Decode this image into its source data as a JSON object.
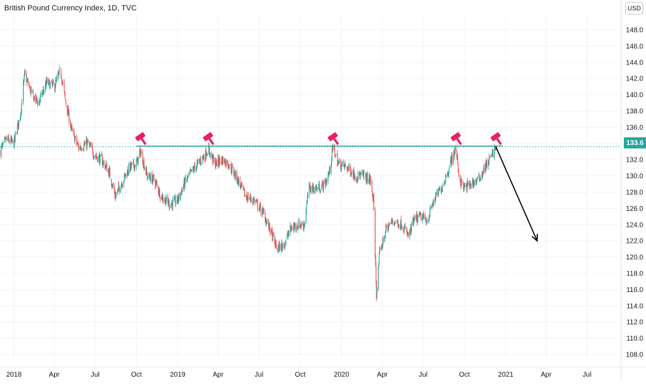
{
  "header": {
    "title": "British Pound Currency Index, 1D, TVC",
    "currency_button": "USD"
  },
  "colors": {
    "up": "#26a69a",
    "down": "#ef5350",
    "resistance_line": "#26a69a",
    "current_price_line": "#26a69a",
    "price_badge": "#26a69a",
    "marker": "#e91e63",
    "arrow": "#000000",
    "axis_text": "#131722"
  },
  "icons": [
    "hammer-icon",
    "arrow-down-right-icon"
  ],
  "chart_data": {
    "type": "candlestick",
    "title": "British Pound Currency Index, 1D, TVC",
    "x_ticks": [
      "2018",
      "Apr",
      "Jul",
      "Oct",
      "2019",
      "Apr",
      "Jul",
      "Oct",
      "2020",
      "Apr",
      "Jul",
      "Oct",
      "2021",
      "Apr",
      "Jul"
    ],
    "y_ticks": [
      "108.0",
      "110.0",
      "112.0",
      "114.0",
      "116.0",
      "118.0",
      "120.0",
      "122.0",
      "124.0",
      "126.0",
      "128.0",
      "130.0",
      "132.0",
      "134.0",
      "136.0",
      "138.0",
      "140.0",
      "142.0",
      "144.0",
      "146.0",
      "148.0"
    ],
    "ylim": [
      106.8,
      149.8
    ],
    "xlim": [
      "2017-12-01",
      "2021-09-15"
    ],
    "current_price": {
      "value": 133.6,
      "label": "133.6"
    },
    "resistance_level": 133.6,
    "price_path": [
      [
        "2017-12-01",
        133.0
      ],
      [
        "2017-12-15",
        134.5
      ],
      [
        "2018-01-01",
        134.0
      ],
      [
        "2018-01-15",
        137.5
      ],
      [
        "2018-01-25",
        142.5
      ],
      [
        "2018-02-10",
        140.0
      ],
      [
        "2018-02-25",
        139.0
      ],
      [
        "2018-03-15",
        141.5
      ],
      [
        "2018-04-01",
        141.0
      ],
      [
        "2018-04-15",
        143.0
      ],
      [
        "2018-04-25",
        139.5
      ],
      [
        "2018-05-10",
        135.5
      ],
      [
        "2018-05-25",
        133.5
      ],
      [
        "2018-06-15",
        134.0
      ],
      [
        "2018-07-01",
        132.5
      ],
      [
        "2018-07-15",
        132.0
      ],
      [
        "2018-08-01",
        130.5
      ],
      [
        "2018-08-15",
        127.5
      ],
      [
        "2018-09-01",
        129.5
      ],
      [
        "2018-09-15",
        131.0
      ],
      [
        "2018-10-01",
        131.5
      ],
      [
        "2018-10-10",
        133.0
      ],
      [
        "2018-10-25",
        130.0
      ],
      [
        "2018-11-10",
        129.5
      ],
      [
        "2018-11-25",
        127.5
      ],
      [
        "2018-12-15",
        126.5
      ],
      [
        "2019-01-01",
        127.0
      ],
      [
        "2019-01-15",
        129.0
      ],
      [
        "2019-02-01",
        130.5
      ],
      [
        "2019-02-15",
        131.5
      ],
      [
        "2019-03-01",
        132.5
      ],
      [
        "2019-03-10",
        133.3
      ],
      [
        "2019-03-25",
        131.5
      ],
      [
        "2019-04-10",
        132.0
      ],
      [
        "2019-04-25",
        131.5
      ],
      [
        "2019-05-15",
        129.5
      ],
      [
        "2019-06-01",
        127.5
      ],
      [
        "2019-06-20",
        127.0
      ],
      [
        "2019-07-10",
        125.5
      ],
      [
        "2019-07-25",
        123.5
      ],
      [
        "2019-08-10",
        121.0
      ],
      [
        "2019-08-25",
        121.5
      ],
      [
        "2019-09-10",
        123.5
      ],
      [
        "2019-09-25",
        124.0
      ],
      [
        "2019-10-10",
        124.0
      ],
      [
        "2019-10-20",
        128.5
      ],
      [
        "2019-11-10",
        128.5
      ],
      [
        "2019-11-25",
        129.0
      ],
      [
        "2019-12-05",
        130.5
      ],
      [
        "2019-12-13",
        133.5
      ],
      [
        "2019-12-25",
        131.5
      ],
      [
        "2020-01-15",
        131.0
      ],
      [
        "2020-02-01",
        130.0
      ],
      [
        "2020-02-20",
        130.0
      ],
      [
        "2020-03-05",
        129.5
      ],
      [
        "2020-03-12",
        127.0
      ],
      [
        "2020-03-19",
        115.5
      ],
      [
        "2020-03-26",
        120.5
      ],
      [
        "2020-04-10",
        123.5
      ],
      [
        "2020-04-25",
        124.5
      ],
      [
        "2020-05-15",
        124.0
      ],
      [
        "2020-05-30",
        122.5
      ],
      [
        "2020-06-10",
        124.5
      ],
      [
        "2020-06-25",
        125.0
      ],
      [
        "2020-07-10",
        124.5
      ],
      [
        "2020-07-25",
        127.0
      ],
      [
        "2020-08-10",
        128.5
      ],
      [
        "2020-08-25",
        130.5
      ],
      [
        "2020-09-05",
        132.5
      ],
      [
        "2020-09-12",
        133.5
      ],
      [
        "2020-09-20",
        129.5
      ],
      [
        "2020-10-01",
        128.5
      ],
      [
        "2020-10-15",
        129.0
      ],
      [
        "2020-11-01",
        129.5
      ],
      [
        "2020-11-15",
        131.0
      ],
      [
        "2020-12-01",
        132.5
      ],
      [
        "2020-12-10",
        133.6
      ]
    ],
    "markers": [
      {
        "date": "2018-10-10",
        "price": 133.6
      },
      {
        "date": "2019-03-10",
        "price": 133.6
      },
      {
        "date": "2019-12-13",
        "price": 133.6
      },
      {
        "date": "2020-09-12",
        "price": 133.6
      },
      {
        "date": "2020-12-10",
        "price": 133.6
      }
    ],
    "projection_arrow": {
      "from": [
        "2020-12-10",
        133.6
      ],
      "to": [
        "2021-03-12",
        122.0
      ]
    },
    "grid": true,
    "legend": "none"
  }
}
